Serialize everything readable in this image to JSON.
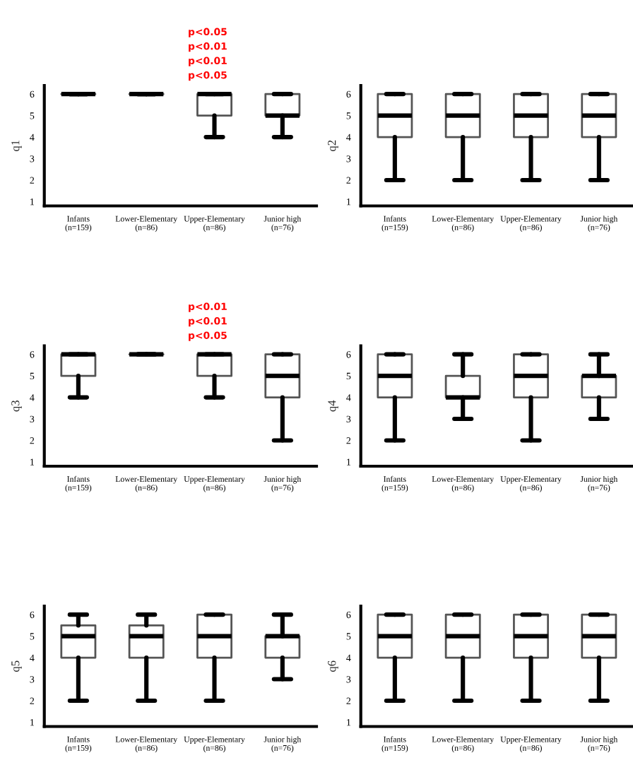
{
  "chart_data": [
    {
      "type": "box",
      "ylabel": "q1",
      "categories": [
        "Infants\n(n=159)",
        "Lower-Elementary\n(n=86)",
        "Upper-Elementary\n(n=86)",
        "Junior high\n(n=76)"
      ],
      "ylim": [
        0.8,
        6.4
      ],
      "yticks": [
        1,
        2,
        3,
        4,
        5,
        6
      ],
      "grid": false,
      "boxes": [
        {
          "low": 6,
          "q1": 6,
          "median": 6,
          "q3": 6,
          "high": 6
        },
        {
          "low": 6,
          "q1": 6,
          "median": 6,
          "q3": 6,
          "high": 6
        },
        {
          "low": 4,
          "q1": 5,
          "median": 6,
          "q3": 6,
          "high": 6
        },
        {
          "low": 4,
          "q1": 5,
          "median": 5,
          "q3": 6,
          "high": 6
        }
      ],
      "annotations": [
        "p<0.05",
        "p<0.01",
        "p<0.01",
        "p<0.05"
      ]
    },
    {
      "type": "box",
      "ylabel": "q2",
      "categories": [
        "Infants\n(n=159)",
        "Lower-Elementary\n(n=86)",
        "Upper-Elementary\n(n=86)",
        "Junior high\n(n=76)"
      ],
      "ylim": [
        0.8,
        6.4
      ],
      "yticks": [
        1,
        2,
        3,
        4,
        5,
        6
      ],
      "grid": false,
      "boxes": [
        {
          "low": 2,
          "q1": 4,
          "median": 5,
          "q3": 6,
          "high": 6
        },
        {
          "low": 2,
          "q1": 4,
          "median": 5,
          "q3": 6,
          "high": 6
        },
        {
          "low": 2,
          "q1": 4,
          "median": 5,
          "q3": 6,
          "high": 6
        },
        {
          "low": 2,
          "q1": 4,
          "median": 5,
          "q3": 6,
          "high": 6
        }
      ]
    },
    {
      "type": "box",
      "ylabel": "q3",
      "categories": [
        "Infants\n(n=159)",
        "Lower-Elementary\n(n=86)",
        "Upper-Elementary\n(n=86)",
        "Junior high\n(n=76)"
      ],
      "ylim": [
        0.8,
        6.4
      ],
      "yticks": [
        1,
        2,
        3,
        4,
        5,
        6
      ],
      "grid": false,
      "boxes": [
        {
          "low": 4,
          "q1": 5,
          "median": 6,
          "q3": 6,
          "high": 6
        },
        {
          "low": 6,
          "q1": 6,
          "median": 6,
          "q3": 6,
          "high": 6
        },
        {
          "low": 4,
          "q1": 5,
          "median": 6,
          "q3": 6,
          "high": 6
        },
        {
          "low": 2,
          "q1": 4,
          "median": 5,
          "q3": 6,
          "high": 6
        }
      ],
      "annotations": [
        "p<0.01",
        "p<0.01",
        "p<0.05"
      ]
    },
    {
      "type": "box",
      "ylabel": "q4",
      "categories": [
        "Infants\n(n=159)",
        "Lower-Elementary\n(n=86)",
        "Upper-Elementary\n(n=86)",
        "Junior high\n(n=76)"
      ],
      "ylim": [
        0.8,
        6.4
      ],
      "yticks": [
        1,
        2,
        3,
        4,
        5,
        6
      ],
      "grid": false,
      "boxes": [
        {
          "low": 2,
          "q1": 4,
          "median": 5,
          "q3": 6,
          "high": 6
        },
        {
          "low": 3,
          "q1": 4,
          "median": 4,
          "q3": 5,
          "high": 6
        },
        {
          "low": 2,
          "q1": 4,
          "median": 5,
          "q3": 6,
          "high": 6
        },
        {
          "low": 3,
          "q1": 4,
          "median": 5,
          "q3": 5,
          "high": 6
        }
      ]
    },
    {
      "type": "box",
      "ylabel": "q5",
      "categories": [
        "Infants\n(n=159)",
        "Lower-Elementary\n(n=86)",
        "Upper-Elementary\n(n=86)",
        "Junior high\n(n=76)"
      ],
      "ylim": [
        0.8,
        6.4
      ],
      "yticks": [
        1,
        2,
        3,
        4,
        5,
        6
      ],
      "grid": false,
      "boxes": [
        {
          "low": 2,
          "q1": 4,
          "median": 5,
          "q3": 5.5,
          "high": 6
        },
        {
          "low": 2,
          "q1": 4,
          "median": 5,
          "q3": 5.5,
          "high": 6
        },
        {
          "low": 2,
          "q1": 4,
          "median": 5,
          "q3": 6,
          "high": 6
        },
        {
          "low": 3,
          "q1": 4,
          "median": 5,
          "q3": 5,
          "high": 6
        }
      ]
    },
    {
      "type": "box",
      "ylabel": "q6",
      "categories": [
        "Infants\n(n=159)",
        "Lower-Elementary\n(n=86)",
        "Upper-Elementary\n(n=86)",
        "Junior high\n(n=76)"
      ],
      "ylim": [
        0.8,
        6.4
      ],
      "yticks": [
        1,
        2,
        3,
        4,
        5,
        6
      ],
      "grid": false,
      "boxes": [
        {
          "low": 2,
          "q1": 4,
          "median": 5,
          "q3": 6,
          "high": 6
        },
        {
          "low": 2,
          "q1": 4,
          "median": 5,
          "q3": 6,
          "high": 6
        },
        {
          "low": 2,
          "q1": 4,
          "median": 5,
          "q3": 6,
          "high": 6
        },
        {
          "low": 2,
          "q1": 4,
          "median": 5,
          "q3": 6,
          "high": 6
        }
      ]
    }
  ]
}
